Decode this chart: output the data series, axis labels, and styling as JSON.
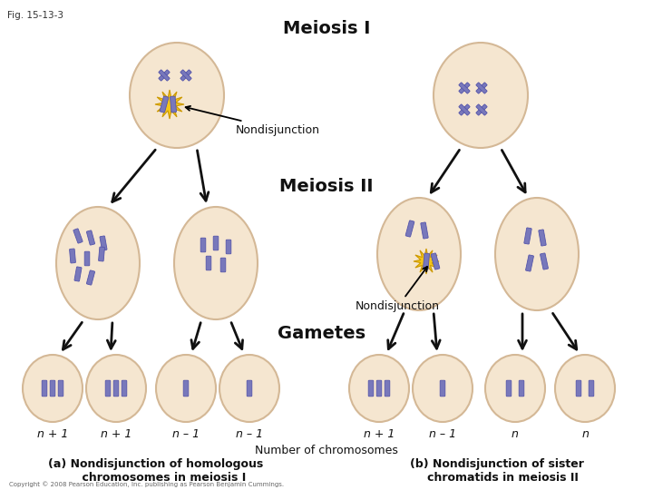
{
  "fig_label": "Fig. 15-13-3",
  "title_meiosis1": "Meiosis I",
  "title_meiosis2": "Meiosis II",
  "title_gametes": "Gametes",
  "label_nondisjunction": "Nondisjunction",
  "label_number": "Number of chromosomes",
  "gamete_labels_left": [
    "n + 1",
    "n + 1",
    "n – 1",
    "n – 1"
  ],
  "gamete_labels_right": [
    "n + 1",
    "n – 1",
    "n",
    "n"
  ],
  "bg_color": "#FFFFFF",
  "cell_fill": "#F5E6D0",
  "cell_edge": "#D4B896",
  "chrom_color": "#7878BB",
  "star_color": "#F5C518",
  "arrow_color": "#111111",
  "text_color": "#111111",
  "font_size_title": 14,
  "font_size_label": 9,
  "font_size_gamete": 9,
  "font_size_bottom": 9
}
